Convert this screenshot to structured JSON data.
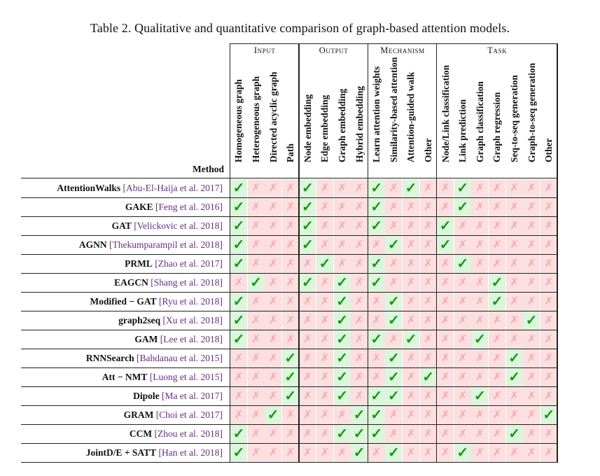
{
  "caption": "Table 2.  Qualitative and quantitative comparison of graph-based attention models.",
  "method_header": "Method",
  "groups": [
    {
      "label": "Input",
      "span": 4
    },
    {
      "label": "Output",
      "span": 4
    },
    {
      "label": "Mechanism",
      "span": 4
    },
    {
      "label": "Task",
      "span": 7
    }
  ],
  "columns": [
    "Homogeneous graph",
    "Heterogeneous graph",
    "Directed acyclic graph",
    "Path",
    "Node embedding",
    "Edge embedding",
    "Graph embedding",
    "Hybrid embedding",
    "Learn attention weights",
    "Similarity-based attention",
    "Attention-guided walk",
    "Other",
    "Node/Link classification",
    "Link prediction",
    "Graph classification",
    "Graph regression",
    "Seq-to-seq generation",
    "Graph-to-seq generation",
    "Other"
  ],
  "symbols": {
    "yes": "✓",
    "no": "✗"
  },
  "colors": {
    "yes_bg": "#dcf5dc",
    "no_bg": "#fcdfe0",
    "yes_fg": "#139a13",
    "no_fg": "#f3a9ac",
    "cite": "#6a2c86"
  },
  "rows": [
    {
      "method": "AttentionWalks",
      "cite": "[Abu-El-Haija et al. 2017]",
      "marks": [
        1,
        0,
        0,
        0,
        1,
        0,
        0,
        0,
        1,
        0,
        1,
        0,
        0,
        1,
        0,
        0,
        0,
        0,
        0
      ]
    },
    {
      "method": "GAKE",
      "cite": "[Feng et al. 2016]",
      "marks": [
        1,
        0,
        0,
        0,
        1,
        0,
        0,
        0,
        1,
        0,
        0,
        0,
        0,
        1,
        0,
        0,
        0,
        0,
        0
      ]
    },
    {
      "method": "GAT",
      "cite": "[Velickovic et al. 2018]",
      "marks": [
        1,
        0,
        0,
        0,
        1,
        0,
        0,
        0,
        1,
        0,
        0,
        0,
        1,
        0,
        0,
        0,
        0,
        0,
        0
      ]
    },
    {
      "method": "AGNN",
      "cite": "[Thekumparampil et al. 2018]",
      "marks": [
        1,
        0,
        0,
        0,
        1,
        0,
        0,
        0,
        0,
        1,
        0,
        0,
        1,
        0,
        0,
        0,
        0,
        0,
        0
      ]
    },
    {
      "method": "PRML",
      "cite": "[Zhao et al. 2017]",
      "marks": [
        1,
        0,
        0,
        0,
        0,
        1,
        0,
        0,
        1,
        0,
        0,
        0,
        0,
        1,
        0,
        0,
        0,
        0,
        0
      ]
    },
    {
      "method": "EAGCN",
      "cite": "[Shang et al. 2018]",
      "marks": [
        0,
        1,
        0,
        0,
        1,
        0,
        1,
        0,
        1,
        0,
        0,
        0,
        0,
        0,
        0,
        1,
        0,
        0,
        0
      ]
    },
    {
      "method": "Modified − GAT",
      "cite": "[Ryu et al. 2018]",
      "marks": [
        1,
        0,
        0,
        0,
        0,
        0,
        1,
        0,
        0,
        1,
        0,
        0,
        0,
        0,
        0,
        1,
        0,
        0,
        0
      ]
    },
    {
      "method": "graph2seq",
      "cite": "[Xu et al. 2018]",
      "marks": [
        1,
        0,
        0,
        0,
        0,
        0,
        1,
        0,
        0,
        1,
        0,
        0,
        0,
        0,
        0,
        0,
        0,
        1,
        0
      ]
    },
    {
      "method": "GAM",
      "cite": "[Lee et al. 2018]",
      "marks": [
        1,
        0,
        0,
        0,
        0,
        0,
        1,
        0,
        1,
        0,
        1,
        0,
        0,
        0,
        1,
        0,
        0,
        0,
        0
      ]
    },
    {
      "method": "RNNSearch",
      "cite": "[Bahdanau et al. 2015]",
      "marks": [
        0,
        0,
        0,
        1,
        0,
        0,
        1,
        0,
        0,
        1,
        0,
        0,
        0,
        0,
        0,
        0,
        1,
        0,
        0
      ]
    },
    {
      "method": "Att − NMT",
      "cite": "[Luong et al. 2015]",
      "marks": [
        0,
        0,
        0,
        1,
        0,
        0,
        1,
        0,
        0,
        1,
        0,
        1,
        0,
        0,
        0,
        0,
        1,
        0,
        0
      ]
    },
    {
      "method": "Dipole",
      "cite": "[Ma et al. 2017]",
      "marks": [
        0,
        0,
        0,
        1,
        0,
        0,
        1,
        0,
        1,
        1,
        0,
        0,
        0,
        0,
        1,
        0,
        0,
        0,
        0
      ]
    },
    {
      "method": "GRAM",
      "cite": "[Choi et al. 2017]",
      "marks": [
        0,
        0,
        1,
        0,
        0,
        0,
        0,
        1,
        1,
        0,
        0,
        0,
        0,
        0,
        0,
        0,
        0,
        0,
        1
      ]
    },
    {
      "method": "CCM",
      "cite": "[Zhou et al. 2018]",
      "marks": [
        1,
        0,
        0,
        0,
        0,
        0,
        1,
        1,
        1,
        0,
        0,
        0,
        0,
        0,
        0,
        0,
        1,
        0,
        0
      ]
    },
    {
      "method": "JointD/E + SATT",
      "cite": "[Han et al. 2018]",
      "marks": [
        1,
        0,
        0,
        0,
        0,
        0,
        0,
        1,
        0,
        1,
        0,
        0,
        0,
        1,
        0,
        0,
        0,
        0,
        0
      ]
    }
  ]
}
